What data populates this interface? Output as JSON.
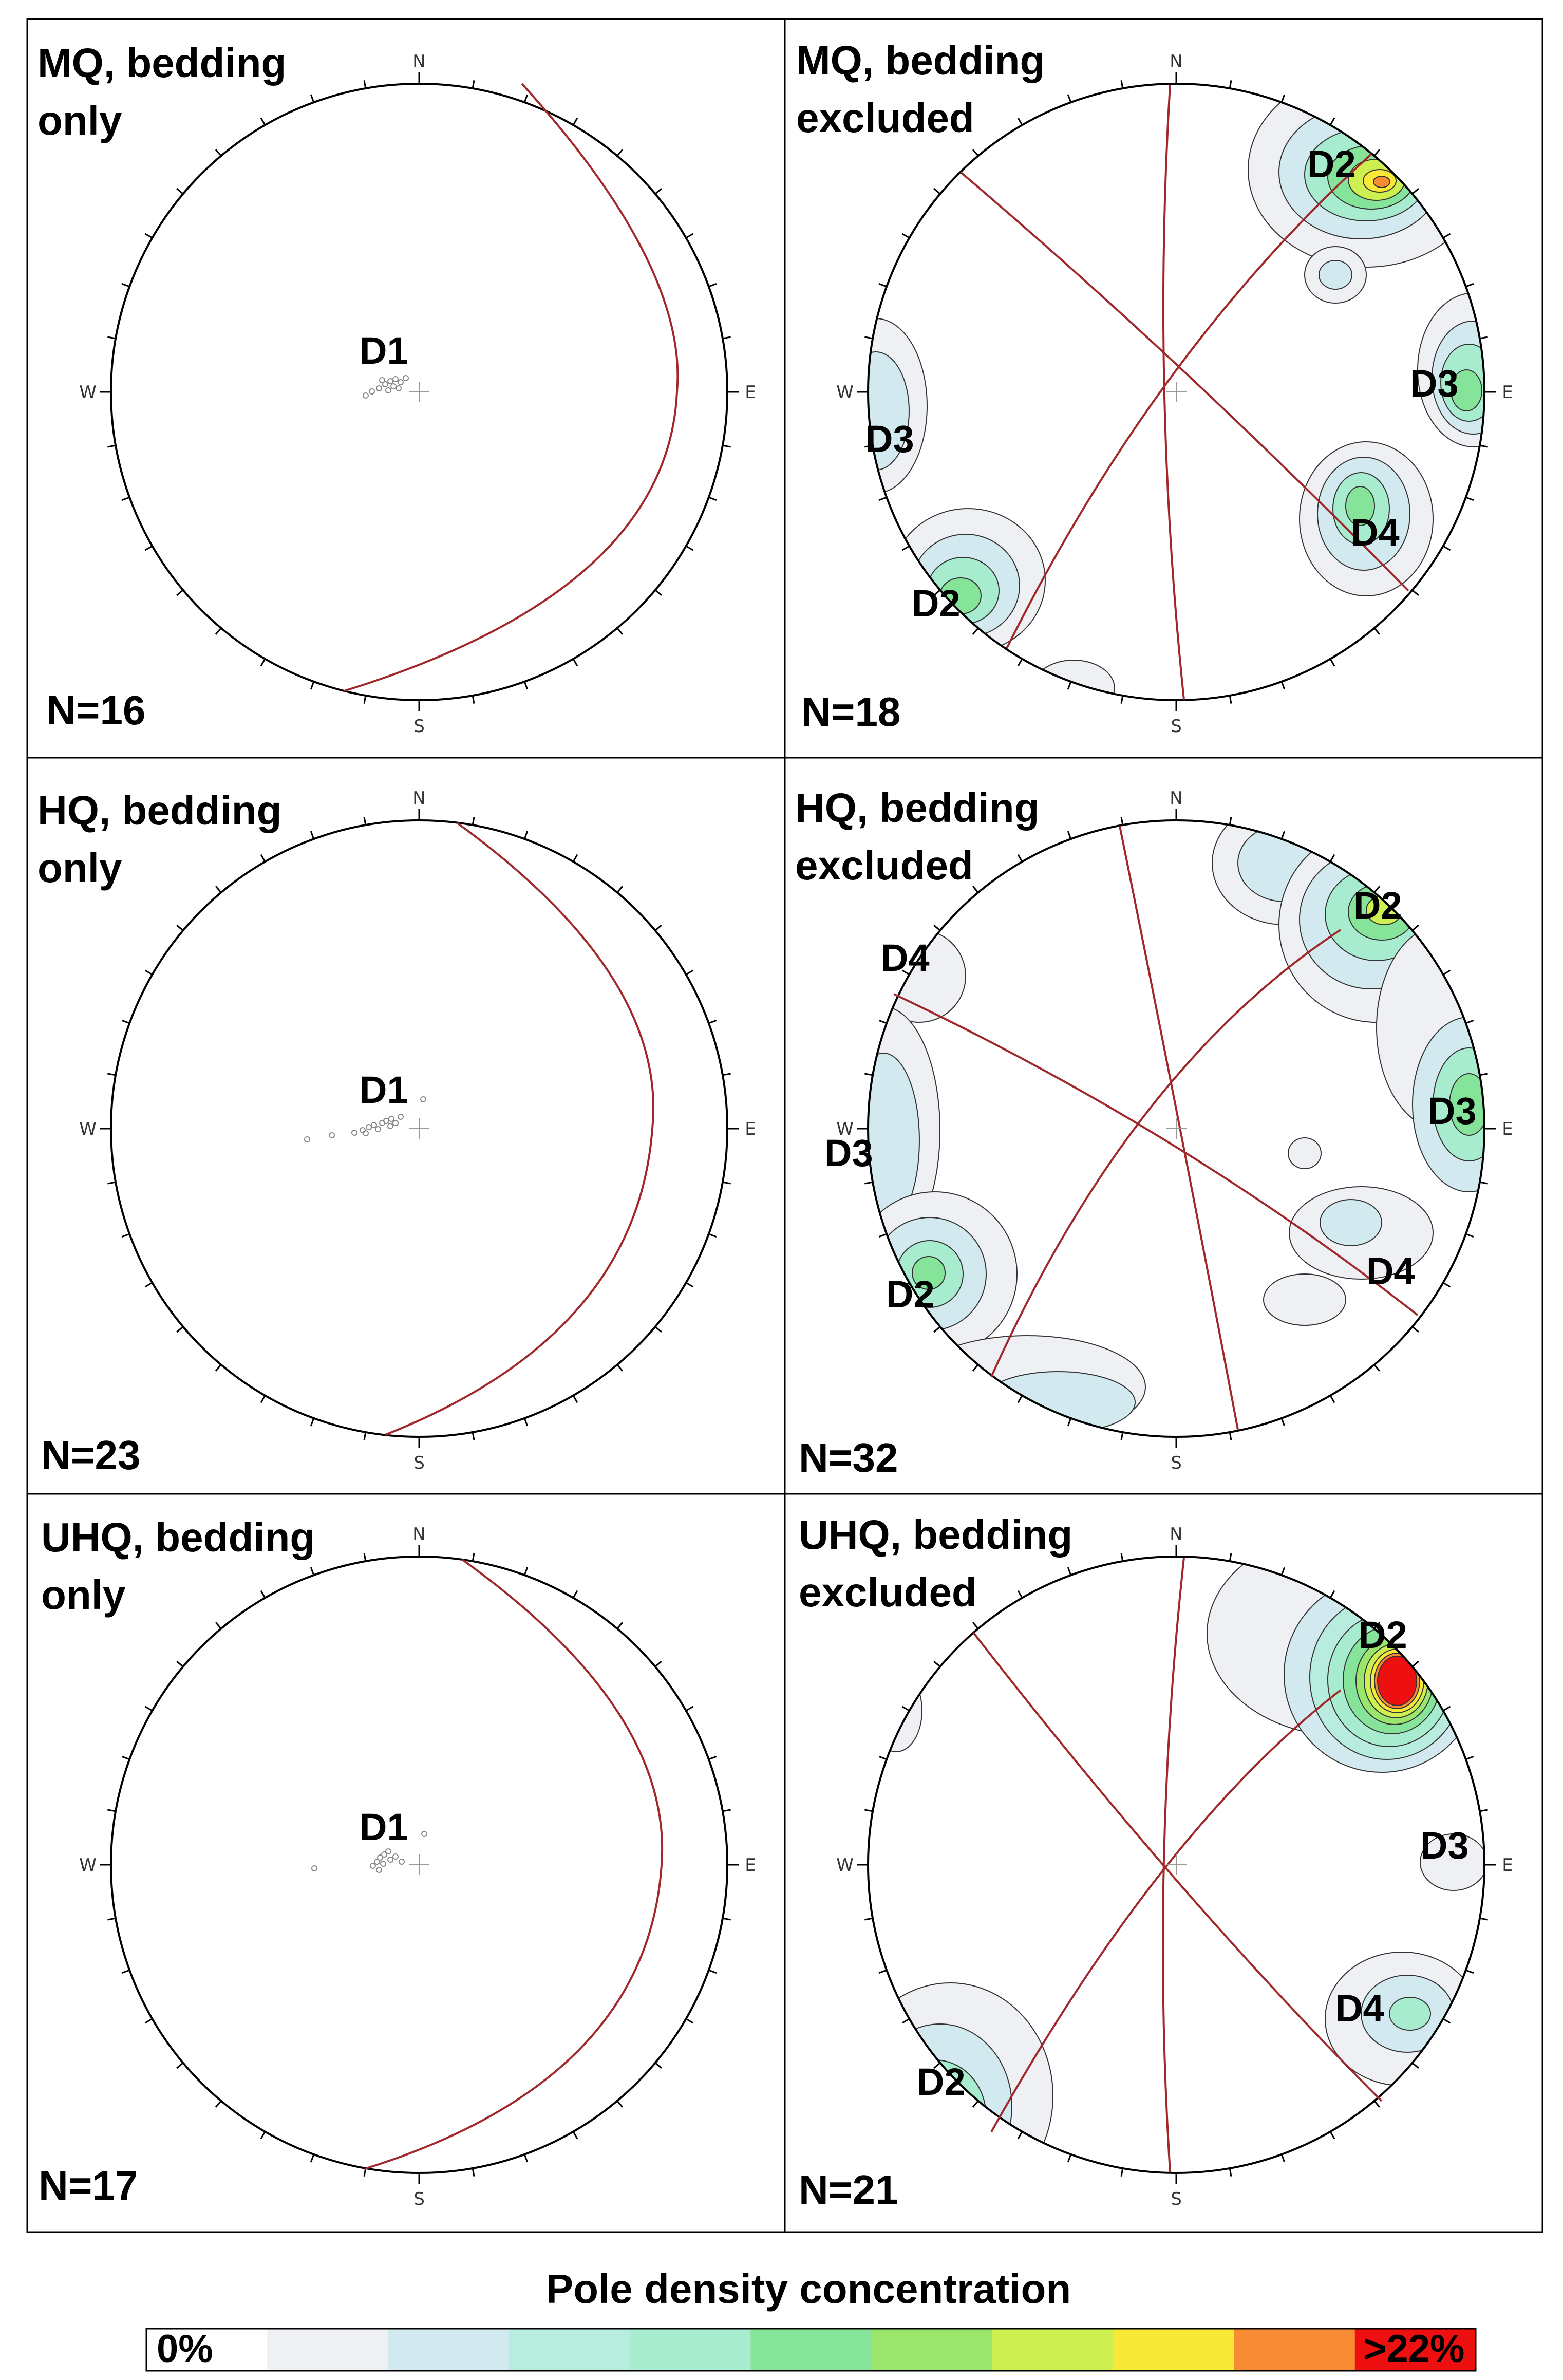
{
  "panels": [
    {
      "title_line1": "MQ, bedding",
      "title_line2": "only",
      "count": "N=16",
      "kind": "bedding",
      "labels": [
        "D1"
      ]
    },
    {
      "title_line1": "MQ, bedding",
      "title_line2": "excluded",
      "count": "N=18",
      "kind": "excluded",
      "labels": [
        "D2",
        "D3",
        "D4",
        "D3",
        "D2"
      ]
    },
    {
      "title_line1": "HQ, bedding",
      "title_line2": "only",
      "count": "N=23",
      "kind": "bedding",
      "labels": [
        "D1"
      ]
    },
    {
      "title_line1": "HQ, bedding",
      "title_line2": "excluded",
      "count": "N=32",
      "kind": "excluded",
      "labels": [
        "D2",
        "D4",
        "D3",
        "D3",
        "D4",
        "D2"
      ]
    },
    {
      "title_line1": "UHQ, bedding",
      "title_line2": "only",
      "count": "N=17",
      "kind": "bedding",
      "labels": [
        "D1"
      ]
    },
    {
      "title_line1": "UHQ, bedding",
      "title_line2": "excluded",
      "count": "N=21",
      "kind": "excluded",
      "labels": [
        "D2",
        "D3",
        "D4",
        "D2"
      ]
    }
  ],
  "compass": {
    "north": "N",
    "south": "S",
    "east": "E",
    "west": "W"
  },
  "legend": {
    "title": "Pole density concentration",
    "min_label": "0%",
    "max_label": ">22%",
    "colors": [
      "#ffffff",
      "#eef0f4",
      "#d2e9f0",
      "#b8ecde",
      "#a8ecd0",
      "#86e49a",
      "#9ae66c",
      "#cdf050",
      "#f8e838",
      "#f88c34",
      "#ee1010"
    ]
  },
  "colors": {
    "great_circle": "#a0282a",
    "frame": "#000000",
    "contour": "#333333"
  }
}
